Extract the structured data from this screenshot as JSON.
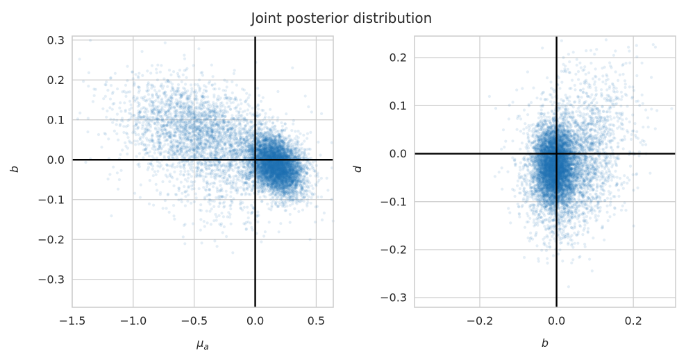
{
  "figure": {
    "suptitle": "Joint posterior distribution",
    "point_color": "#1f77b4",
    "point_alpha": 0.12,
    "reference_line_color": "#000000",
    "grid_color": "#cccccc",
    "spine_color": "#cccccc"
  },
  "chart_data": [
    {
      "type": "scatter",
      "title": "",
      "xlabel": "μ",
      "xlabel_sub": "a",
      "ylabel": "b",
      "xlim": [
        -1.5,
        0.64
      ],
      "ylim": [
        -0.37,
        0.31
      ],
      "xticks": [
        -1.5,
        -1.0,
        -0.5,
        0.0,
        0.5
      ],
      "xtick_labels": [
        "−1.5",
        "−1.0",
        "−0.5",
        "0.0",
        "0.5"
      ],
      "yticks": [
        -0.3,
        -0.2,
        -0.1,
        0.0,
        0.1,
        0.2,
        0.3
      ],
      "ytick_labels": [
        "−0.3",
        "−0.2",
        "−0.1",
        "0.0",
        "0.1",
        "0.2",
        "0.3"
      ],
      "grid": true,
      "reference_lines": {
        "x": 0.0,
        "y": 0.0
      },
      "series": [
        {
          "clusters": [
            {
              "n": 5500,
              "mx": 0.17,
              "my": -0.015,
              "sx": 0.11,
              "sy": 0.035,
              "rho": -0.3
            },
            {
              "n": 2600,
              "mx": -0.45,
              "my": 0.07,
              "sx": 0.32,
              "sy": 0.065,
              "rho": -0.35
            },
            {
              "n": 600,
              "mx": -0.2,
              "my": -0.03,
              "sx": 0.35,
              "sy": 0.08,
              "rho": 0.0
            }
          ]
        }
      ]
    },
    {
      "type": "scatter",
      "title": "",
      "xlabel": "b",
      "xlabel_sub": "",
      "ylabel": "d",
      "xlim": [
        -0.37,
        0.31
      ],
      "ylim": [
        -0.32,
        0.245
      ],
      "xticks": [
        -0.2,
        0.0,
        0.2
      ],
      "xtick_labels": [
        "−0.2",
        "0.0",
        "0.2"
      ],
      "yticks": [
        -0.3,
        -0.2,
        -0.1,
        0.0,
        0.1,
        0.2
      ],
      "ytick_labels": [
        "−0.3",
        "−0.2",
        "−0.1",
        "0.0",
        "0.1",
        "0.2"
      ],
      "grid": true,
      "reference_lines": {
        "x": 0.0,
        "y": 0.0
      },
      "series": [
        {
          "clusters": [
            {
              "n": 5500,
              "mx": -0.005,
              "my": -0.025,
              "sx": 0.025,
              "sy": 0.04,
              "rho": 0.0
            },
            {
              "n": 2600,
              "mx": 0.03,
              "my": -0.03,
              "sx": 0.06,
              "sy": 0.07,
              "rho": 0.1
            },
            {
              "n": 500,
              "mx": 0.1,
              "my": 0.07,
              "sx": 0.07,
              "sy": 0.07,
              "rho": 0.1
            }
          ]
        }
      ]
    }
  ]
}
